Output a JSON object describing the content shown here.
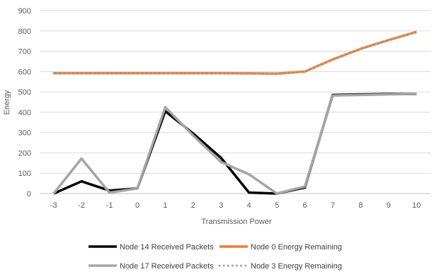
{
  "chart_data": {
    "type": "line",
    "title": "",
    "xlabel": "Transmission Power",
    "ylabel": "Energy",
    "ylim": [
      0,
      900
    ],
    "y_ticks": [
      0,
      100,
      200,
      300,
      400,
      500,
      600,
      700,
      800,
      900
    ],
    "x": [
      -3,
      -2,
      -1,
      0,
      1,
      2,
      3,
      4,
      5,
      6,
      7,
      8,
      9,
      10
    ],
    "grid": "horizontal",
    "legend_position": "bottom",
    "series": [
      {
        "name": "Node 14 Received Packets",
        "color": "#000000",
        "style": "solid",
        "values": [
          0,
          60,
          15,
          25,
          405,
          295,
          175,
          5,
          0,
          30,
          485,
          488,
          490,
          490
        ]
      },
      {
        "name": "Node 0 Energy Remaining",
        "color": "#ED7D31",
        "style": "solid",
        "values": [
          592,
          592,
          592,
          592,
          592,
          592,
          592,
          591,
          590,
          600,
          660,
          712,
          755,
          795
        ]
      },
      {
        "name": "Node 17 Received Packets",
        "color": "#A5A5A5",
        "style": "solid",
        "values": [
          0,
          172,
          5,
          25,
          425,
          285,
          155,
          95,
          0,
          35,
          482,
          485,
          488,
          490
        ]
      },
      {
        "name": "Node 3 Energy Remaining",
        "color": "#A5A5A5",
        "style": "dotted",
        "values": [
          592,
          592,
          592,
          592,
          592,
          592,
          592,
          591,
          590,
          600,
          660,
          712,
          755,
          795
        ]
      }
    ]
  }
}
